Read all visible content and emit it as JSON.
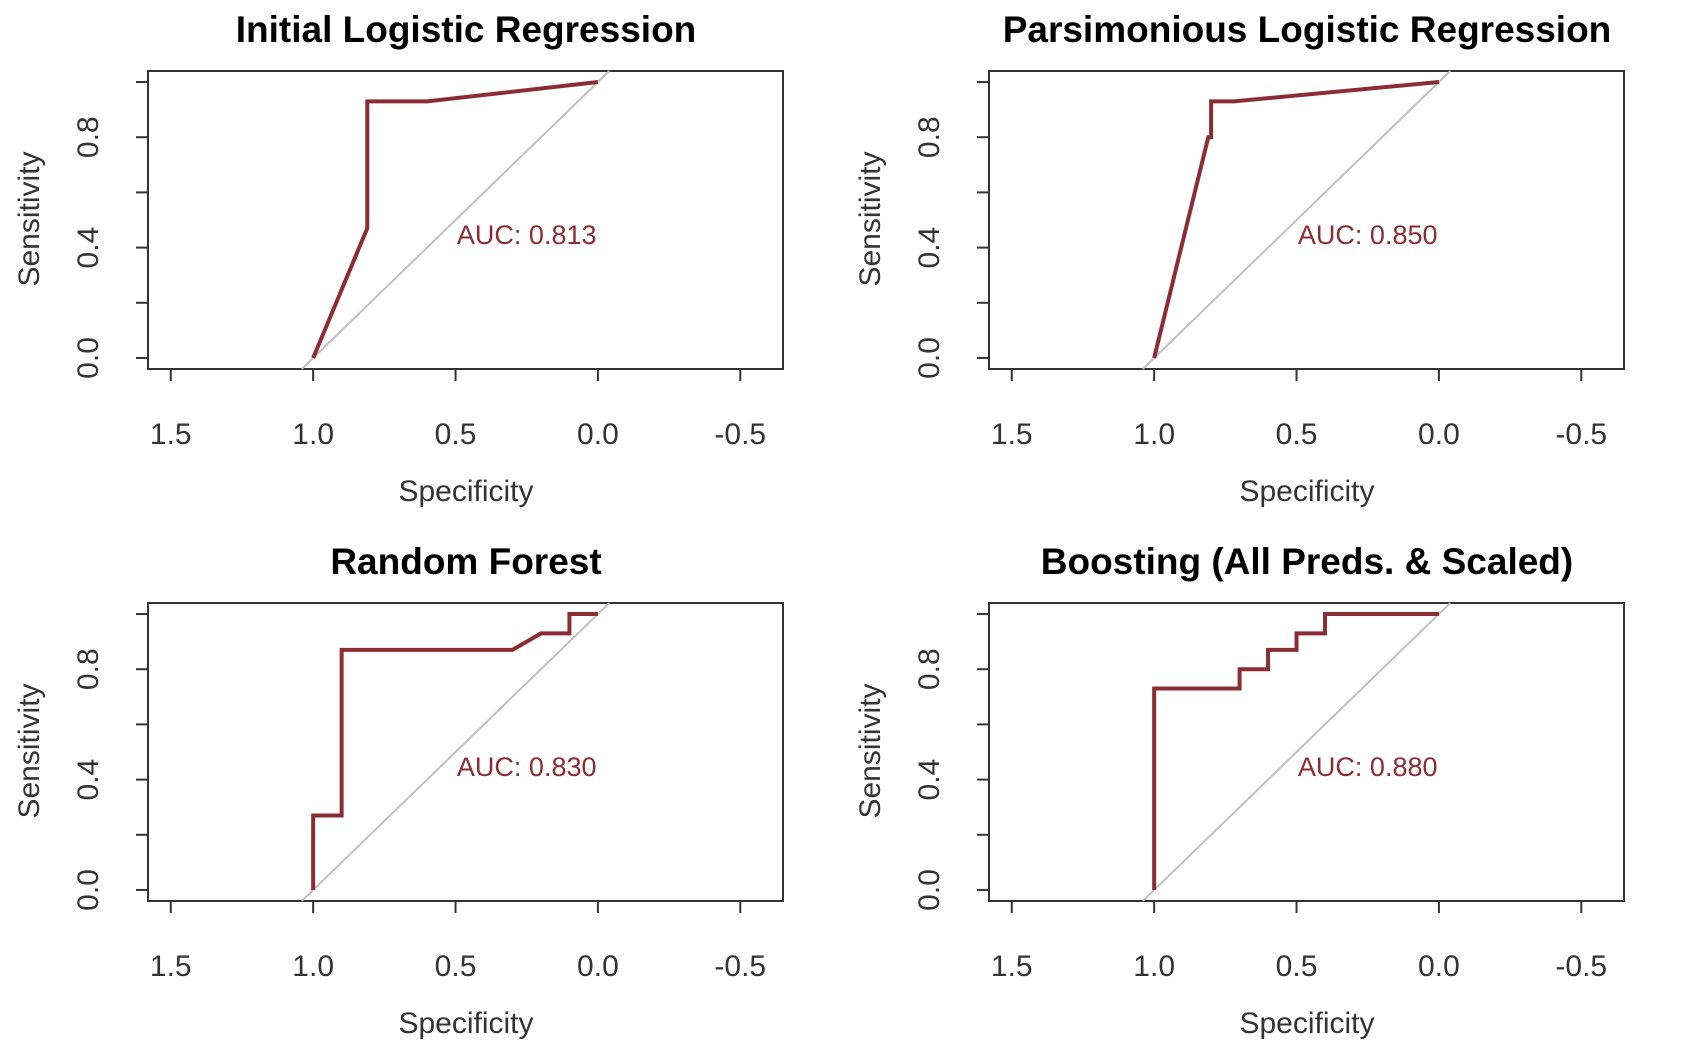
{
  "colors": {
    "roc": "#8b2e33",
    "diagonal": "#c0c0c0",
    "axis": "#333333"
  },
  "chart_data": [
    {
      "type": "line",
      "title": "Initial Logistic Regression",
      "xlabel": "Specificity",
      "ylabel": "Sensitivity",
      "xlim": [
        1.58,
        -0.65
      ],
      "ylim": [
        -0.04,
        1.04
      ],
      "x_reversed": true,
      "x_ticks": [
        1.5,
        1.0,
        0.5,
        0.0,
        -0.5
      ],
      "x_tick_labels": [
        "1.5",
        "1.0",
        "0.5",
        "0.0",
        "-0.5"
      ],
      "y_ticks": [
        0.0,
        0.2,
        0.4,
        0.6,
        0.8,
        1.0
      ],
      "y_tick_labels": [
        "0.0",
        "",
        "0.4",
        "",
        "0.8",
        ""
      ],
      "reference_line": [
        [
          1.0,
          0.0
        ],
        [
          0.0,
          1.0
        ]
      ],
      "series": [
        {
          "x": [
            1.0,
            0.81,
            0.81,
            0.6,
            0.0
          ],
          "y": [
            0.0,
            0.47,
            0.93,
            0.93,
            1.0
          ]
        }
      ],
      "annotation": {
        "text": "AUC: 0.813",
        "x": 0.25,
        "y": 0.45
      }
    },
    {
      "type": "line",
      "title": "Parsimonious Logistic Regression",
      "xlabel": "Specificity",
      "ylabel": "Sensitivity",
      "xlim": [
        1.58,
        -0.65
      ],
      "ylim": [
        -0.04,
        1.04
      ],
      "x_reversed": true,
      "x_ticks": [
        1.5,
        1.0,
        0.5,
        0.0,
        -0.5
      ],
      "x_tick_labels": [
        "1.5",
        "1.0",
        "0.5",
        "0.0",
        "-0.5"
      ],
      "y_ticks": [
        0.0,
        0.2,
        0.4,
        0.6,
        0.8,
        1.0
      ],
      "y_tick_labels": [
        "0.0",
        "",
        "0.4",
        "",
        "0.8",
        ""
      ],
      "reference_line": [
        [
          1.0,
          0.0
        ],
        [
          0.0,
          1.0
        ]
      ],
      "series": [
        {
          "x": [
            1.0,
            0.81,
            0.8,
            0.8,
            0.72,
            0.0
          ],
          "y": [
            0.0,
            0.8,
            0.8,
            0.93,
            0.93,
            1.0
          ]
        }
      ],
      "annotation": {
        "text": "AUC: 0.850",
        "x": 0.25,
        "y": 0.45
      }
    },
    {
      "type": "line",
      "title": "Random Forest",
      "xlabel": "Specificity",
      "ylabel": "Sensitivity",
      "xlim": [
        1.58,
        -0.65
      ],
      "ylim": [
        -0.04,
        1.04
      ],
      "x_reversed": true,
      "x_ticks": [
        1.5,
        1.0,
        0.5,
        0.0,
        -0.5
      ],
      "x_tick_labels": [
        "1.5",
        "1.0",
        "0.5",
        "0.0",
        "-0.5"
      ],
      "y_ticks": [
        0.0,
        0.2,
        0.4,
        0.6,
        0.8,
        1.0
      ],
      "y_tick_labels": [
        "0.0",
        "",
        "0.4",
        "",
        "0.8",
        ""
      ],
      "reference_line": [
        [
          1.0,
          0.0
        ],
        [
          0.0,
          1.0
        ]
      ],
      "series": [
        {
          "x": [
            1.0,
            1.0,
            0.9,
            0.9,
            0.3,
            0.2,
            0.1,
            0.1,
            0.0
          ],
          "y": [
            0.0,
            0.27,
            0.27,
            0.87,
            0.87,
            0.93,
            0.93,
            1.0,
            1.0
          ]
        }
      ],
      "annotation": {
        "text": "AUC: 0.830",
        "x": 0.25,
        "y": 0.45
      }
    },
    {
      "type": "line",
      "title": "Boosting (All Preds. & Scaled)",
      "xlabel": "Specificity",
      "ylabel": "Sensitivity",
      "xlim": [
        1.58,
        -0.65
      ],
      "ylim": [
        -0.04,
        1.04
      ],
      "x_reversed": true,
      "x_ticks": [
        1.5,
        1.0,
        0.5,
        0.0,
        -0.5
      ],
      "x_tick_labels": [
        "1.5",
        "1.0",
        "0.5",
        "0.0",
        "-0.5"
      ],
      "y_ticks": [
        0.0,
        0.2,
        0.4,
        0.6,
        0.8,
        1.0
      ],
      "y_tick_labels": [
        "0.0",
        "",
        "0.4",
        "",
        "0.8",
        ""
      ],
      "reference_line": [
        [
          1.0,
          0.0
        ],
        [
          0.0,
          1.0
        ]
      ],
      "series": [
        {
          "x": [
            1.0,
            1.0,
            0.7,
            0.7,
            0.6,
            0.6,
            0.5,
            0.5,
            0.4,
            0.4,
            0.0
          ],
          "y": [
            0.0,
            0.73,
            0.73,
            0.8,
            0.8,
            0.87,
            0.87,
            0.93,
            0.93,
            1.0,
            1.0
          ]
        }
      ],
      "annotation": {
        "text": "AUC: 0.880",
        "x": 0.25,
        "y": 0.45
      }
    }
  ]
}
